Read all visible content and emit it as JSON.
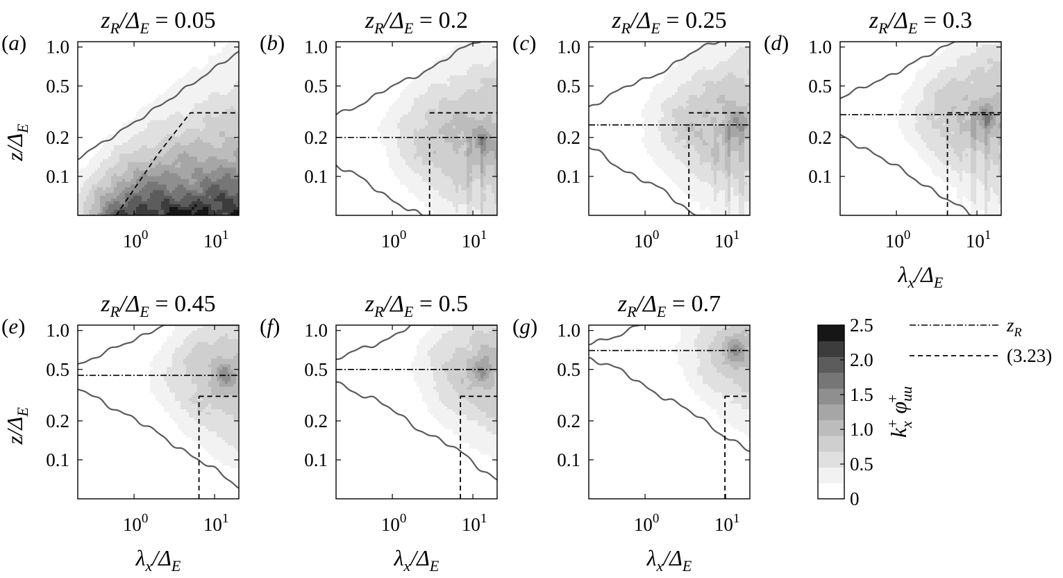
{
  "chart_data": [
    {
      "type": "heatmap",
      "panel_label": "a",
      "title_value": "0.05",
      "zR": 0.05,
      "lam_step": 5.0,
      "xlabel_shown": false,
      "ylabel_shown": true
    },
    {
      "type": "heatmap",
      "panel_label": "b",
      "title_value": "0.2",
      "zR": 0.2,
      "lam_step": 2.9,
      "xlabel_shown": false,
      "ylabel_shown": false
    },
    {
      "type": "heatmap",
      "panel_label": "c",
      "title_value": "0.25",
      "zR": 0.25,
      "lam_step": 3.5,
      "xlabel_shown": false,
      "ylabel_shown": false
    },
    {
      "type": "heatmap",
      "panel_label": "d",
      "title_value": "0.3",
      "zR": 0.3,
      "lam_step": 4.3,
      "xlabel_shown": true,
      "ylabel_shown": false
    },
    {
      "type": "heatmap",
      "panel_label": "e",
      "title_value": "0.45",
      "zR": 0.45,
      "lam_step": 6.4,
      "xlabel_shown": true,
      "ylabel_shown": true
    },
    {
      "type": "heatmap",
      "panel_label": "f",
      "title_value": "0.5",
      "zR": 0.5,
      "lam_step": 7.0,
      "xlabel_shown": true,
      "ylabel_shown": false
    },
    {
      "type": "heatmap",
      "panel_label": "g",
      "title_value": "0.7",
      "zR": 0.7,
      "lam_step": 9.8,
      "xlabel_shown": true,
      "ylabel_shown": false
    }
  ],
  "axes": {
    "x_scale": "log",
    "y_scale": "log",
    "xlim": [
      0.2,
      20
    ],
    "ylim": [
      0.05,
      1.1
    ],
    "x_ticks": [
      1,
      10
    ],
    "x_tick_labels": [
      {
        "base": "10",
        "exp": "0"
      },
      {
        "base": "10",
        "exp": "1"
      }
    ],
    "y_ticks": [
      0.1,
      0.2,
      0.5,
      1.0
    ],
    "y_tick_labels": [
      "0.1",
      "0.2",
      "0.5",
      "1.0"
    ],
    "eq_dashed_height": 0.31
  },
  "colorbar": {
    "ticks": [
      "0",
      "0.5",
      "1.0",
      "1.5",
      "2.0",
      "2.5"
    ],
    "levels": [
      0,
      0.25,
      0.5,
      0.75,
      1.0,
      1.25,
      1.5,
      1.75,
      2.0,
      2.25,
      2.5
    ],
    "colors": [
      "#ffffff",
      "#f2f2f2",
      "#e0e0e0",
      "#cfcfcf",
      "#bcbcbc",
      "#a6a6a6",
      "#8f8f8f",
      "#767676",
      "#5c5c5c",
      "#3c3c3c",
      "#161616"
    ]
  },
  "legend": {
    "entries": [
      {
        "style": "dash-dot",
        "label": "z",
        "label_sub": "R"
      },
      {
        "style": "dashed",
        "label": "(3.23)",
        "label_sub": ""
      }
    ]
  }
}
